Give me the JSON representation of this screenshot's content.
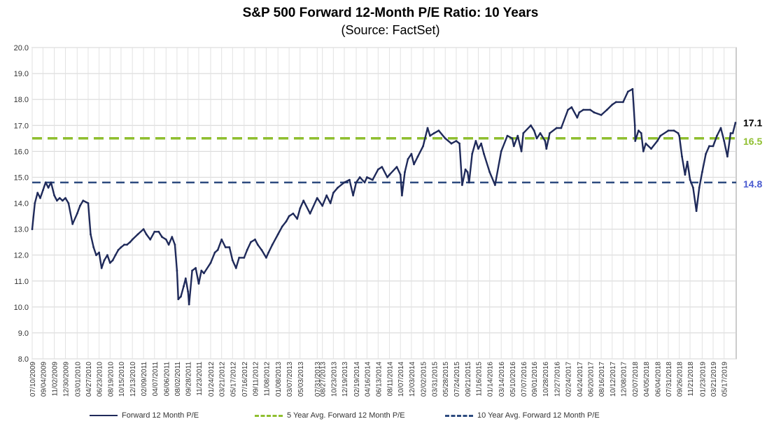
{
  "title": "S&P 500 Forward 12-Month P/E Ratio: 10 Years",
  "subtitle": "(Source: FactSet)",
  "colors": {
    "series": "#1f2a5a",
    "avg5": "#8fbf2f",
    "avg10": "#2e4b7f",
    "label5": "#8fbf2f",
    "label10": "#4a5bd0"
  },
  "chart_data": {
    "type": "line",
    "title": "S&P 500 Forward 12-Month P/E Ratio: 10 Years",
    "subtitle": "(Source: FactSet)",
    "xlabel": "",
    "ylabel": "",
    "ylim": [
      8.0,
      20.0
    ],
    "yticks": [
      "8.0",
      "9.0",
      "10.0",
      "11.0",
      "12.0",
      "13.0",
      "14.0",
      "15.0",
      "16.0",
      "17.0",
      "18.0",
      "19.0",
      "20.0"
    ],
    "grid": true,
    "legend_position": "bottom",
    "xticks": [
      "07/10/2009",
      "09/04/2009",
      "11/02/2009",
      "12/30/2009",
      "03/01/2010",
      "04/27/2010",
      "06/23/2010",
      "08/19/2010",
      "10/15/2010",
      "12/13/2010",
      "02/09/2011",
      "04/07/2011",
      "06/06/2011",
      "08/02/2011",
      "09/28/2011",
      "11/23/2011",
      "01/24/2012",
      "03/21/2012",
      "05/17/2012",
      "07/16/2012",
      "09/11/2012",
      "11/08/2012",
      "01/08/2013",
      "03/07/2013",
      "05/03/2013",
      "07/31/2013",
      "08/27/2013",
      "10/23/2013",
      "12/19/2013",
      "02/19/2014",
      "04/16/2014",
      "06/13/2014",
      "08/11/2014",
      "10/07/2014",
      "12/03/2014",
      "02/02/2015",
      "03/31/2015",
      "05/28/2015",
      "07/24/2015",
      "09/21/2015",
      "11/16/2015",
      "01/14/2016",
      "03/14/2016",
      "05/10/2016",
      "07/07/2016",
      "09/01/2016",
      "10/28/2016",
      "12/27/2016",
      "02/24/2017",
      "04/24/2017",
      "06/20/2017",
      "08/16/2017",
      "10/12/2017",
      "12/08/2017",
      "02/07/2018",
      "04/05/2018",
      "06/04/2018",
      "07/31/2018",
      "09/26/2018",
      "11/21/2018",
      "01/23/2019",
      "03/21/2019",
      "05/17/2019"
    ],
    "series": [
      {
        "name": "Forward 12 Month P/E",
        "style": "solid",
        "points": [
          [
            "07/10/2009",
            13.0
          ],
          [
            "07/24/2009",
            14.0
          ],
          [
            "08/07/2009",
            14.4
          ],
          [
            "08/21/2009",
            14.2
          ],
          [
            "09/04/2009",
            14.5
          ],
          [
            "09/18/2009",
            14.8
          ],
          [
            "10/02/2009",
            14.6
          ],
          [
            "10/16/2009",
            14.8
          ],
          [
            "11/02/2009",
            14.3
          ],
          [
            "11/16/2009",
            14.1
          ],
          [
            "11/30/2009",
            14.2
          ],
          [
            "12/15/2009",
            14.1
          ],
          [
            "12/30/2009",
            14.2
          ],
          [
            "01/15/2010",
            14.0
          ],
          [
            "02/05/2010",
            13.2
          ],
          [
            "03/01/2010",
            13.6
          ],
          [
            "03/16/2010",
            13.9
          ],
          [
            "04/01/2010",
            14.1
          ],
          [
            "04/27/2010",
            14.0
          ],
          [
            "05/10/2010",
            12.8
          ],
          [
            "05/25/2010",
            12.3
          ],
          [
            "06/08/2010",
            12.0
          ],
          [
            "06/23/2010",
            12.1
          ],
          [
            "07/06/2010",
            11.5
          ],
          [
            "07/20/2010",
            11.8
          ],
          [
            "08/05/2010",
            12.0
          ],
          [
            "08/19/2010",
            11.7
          ],
          [
            "09/02/2010",
            11.8
          ],
          [
            "09/16/2010",
            12.0
          ],
          [
            "10/01/2010",
            12.2
          ],
          [
            "10/15/2010",
            12.3
          ],
          [
            "11/01/2010",
            12.4
          ],
          [
            "11/15/2010",
            12.4
          ],
          [
            "12/01/2010",
            12.5
          ],
          [
            "12/13/2010",
            12.6
          ],
          [
            "01/10/2011",
            12.8
          ],
          [
            "02/09/2011",
            13.0
          ],
          [
            "02/24/2011",
            12.8
          ],
          [
            "03/16/2011",
            12.6
          ],
          [
            "04/07/2011",
            12.9
          ],
          [
            "04/29/2011",
            12.9
          ],
          [
            "05/16/2011",
            12.7
          ],
          [
            "06/06/2011",
            12.6
          ],
          [
            "06/20/2011",
            12.4
          ],
          [
            "07/07/2011",
            12.7
          ],
          [
            "07/22/2011",
            12.4
          ],
          [
            "08/02/2011",
            11.4
          ],
          [
            "08/09/2011",
            10.3
          ],
          [
            "08/22/2011",
            10.4
          ],
          [
            "09/06/2011",
            10.8
          ],
          [
            "09/16/2011",
            11.1
          ],
          [
            "09/28/2011",
            10.6
          ],
          [
            "10/04/2011",
            10.1
          ],
          [
            "10/20/2011",
            11.4
          ],
          [
            "11/07/2011",
            11.5
          ],
          [
            "11/23/2011",
            10.9
          ],
          [
            "12/07/2011",
            11.4
          ],
          [
            "12/20/2011",
            11.3
          ],
          [
            "01/24/2012",
            11.7
          ],
          [
            "02/15/2012",
            12.1
          ],
          [
            "03/01/2012",
            12.2
          ],
          [
            "03/21/2012",
            12.6
          ],
          [
            "04/10/2012",
            12.3
          ],
          [
            "05/01/2012",
            12.3
          ],
          [
            "05/17/2012",
            11.8
          ],
          [
            "06/04/2012",
            11.5
          ],
          [
            "06/20/2012",
            11.9
          ],
          [
            "07/16/2012",
            11.9
          ],
          [
            "08/01/2012",
            12.2
          ],
          [
            "08/20/2012",
            12.5
          ],
          [
            "09/11/2012",
            12.6
          ],
          [
            "09/25/2012",
            12.4
          ],
          [
            "10/15/2012",
            12.2
          ],
          [
            "11/08/2012",
            11.9
          ],
          [
            "11/20/2012",
            12.1
          ],
          [
            "12/10/2012",
            12.4
          ],
          [
            "01/08/2013",
            12.8
          ],
          [
            "01/30/2013",
            13.1
          ],
          [
            "02/20/2013",
            13.3
          ],
          [
            "03/07/2013",
            13.5
          ],
          [
            "03/28/2013",
            13.6
          ],
          [
            "04/18/2013",
            13.4
          ],
          [
            "05/03/2013",
            13.8
          ],
          [
            "05/21/2013",
            14.1
          ],
          [
            "06/24/2013",
            13.6
          ],
          [
            "07/31/2013",
            14.2
          ],
          [
            "08/27/2013",
            13.9
          ],
          [
            "09/18/2013",
            14.3
          ],
          [
            "10/08/2013",
            14.0
          ],
          [
            "10/23/2013",
            14.4
          ],
          [
            "11/15/2013",
            14.6
          ],
          [
            "12/19/2013",
            14.8
          ],
          [
            "01/15/2014",
            14.9
          ],
          [
            "02/03/2014",
            14.3
          ],
          [
            "02/19/2014",
            14.8
          ],
          [
            "03/10/2014",
            15.0
          ],
          [
            "04/04/2014",
            14.8
          ],
          [
            "04/16/2014",
            15.0
          ],
          [
            "05/15/2014",
            14.9
          ],
          [
            "06/13/2014",
            15.3
          ],
          [
            "07/03/2014",
            15.4
          ],
          [
            "07/31/2014",
            15.0
          ],
          [
            "08/11/2014",
            15.1
          ],
          [
            "09/18/2014",
            15.4
          ],
          [
            "10/07/2014",
            15.1
          ],
          [
            "10/15/2014",
            14.3
          ],
          [
            "10/30/2014",
            15.2
          ],
          [
            "11/15/2014",
            15.7
          ],
          [
            "12/03/2014",
            15.9
          ],
          [
            "12/16/2014",
            15.5
          ],
          [
            "01/05/2015",
            15.8
          ],
          [
            "02/02/2015",
            16.2
          ],
          [
            "02/25/2015",
            16.9
          ],
          [
            "03/10/2015",
            16.6
          ],
          [
            "03/31/2015",
            16.7
          ],
          [
            "04/24/2015",
            16.8
          ],
          [
            "05/28/2015",
            16.5
          ],
          [
            "06/29/2015",
            16.3
          ],
          [
            "07/24/2015",
            16.4
          ],
          [
            "08/10/2015",
            16.3
          ],
          [
            "08/24/2015",
            14.7
          ],
          [
            "09/10/2015",
            15.3
          ],
          [
            "09/21/2015",
            15.2
          ],
          [
            "09/29/2015",
            14.8
          ],
          [
            "10/15/2015",
            15.9
          ],
          [
            "11/03/2015",
            16.4
          ],
          [
            "11/16/2015",
            16.1
          ],
          [
            "12/01/2015",
            16.3
          ],
          [
            "12/15/2015",
            15.9
          ],
          [
            "01/14/2016",
            15.2
          ],
          [
            "02/11/2016",
            14.7
          ],
          [
            "03/14/2016",
            16.0
          ],
          [
            "04/15/2016",
            16.6
          ],
          [
            "05/10/2016",
            16.5
          ],
          [
            "05/19/2016",
            16.2
          ],
          [
            "06/08/2016",
            16.6
          ],
          [
            "06/27/2016",
            16.0
          ],
          [
            "07/07/2016",
            16.7
          ],
          [
            "08/15/2016",
            17.0
          ],
          [
            "09/01/2016",
            16.8
          ],
          [
            "09/15/2016",
            16.5
          ],
          [
            "10/03/2016",
            16.7
          ],
          [
            "10/28/2016",
            16.4
          ],
          [
            "11/04/2016",
            16.1
          ],
          [
            "11/21/2016",
            16.7
          ],
          [
            "12/27/2016",
            16.9
          ],
          [
            "01/20/2017",
            16.9
          ],
          [
            "02/24/2017",
            17.6
          ],
          [
            "03/15/2017",
            17.7
          ],
          [
            "04/13/2017",
            17.3
          ],
          [
            "04/24/2017",
            17.5
          ],
          [
            "05/15/2017",
            17.6
          ],
          [
            "06/20/2017",
            17.6
          ],
          [
            "07/10/2017",
            17.5
          ],
          [
            "08/16/2017",
            17.4
          ],
          [
            "09/15/2017",
            17.6
          ],
          [
            "10/12/2017",
            17.8
          ],
          [
            "11/01/2017",
            17.9
          ],
          [
            "12/08/2017",
            17.9
          ],
          [
            "01/02/2018",
            18.3
          ],
          [
            "01/26/2018",
            18.4
          ],
          [
            "02/07/2018",
            17.0
          ],
          [
            "02/09/2018",
            16.4
          ],
          [
            "02/26/2018",
            16.8
          ],
          [
            "03/12/2018",
            16.7
          ],
          [
            "03/23/2018",
            16.0
          ],
          [
            "04/05/2018",
            16.3
          ],
          [
            "05/03/2018",
            16.1
          ],
          [
            "06/04/2018",
            16.4
          ],
          [
            "06/20/2018",
            16.6
          ],
          [
            "07/31/2018",
            16.8
          ],
          [
            "08/29/2018",
            16.8
          ],
          [
            "09/20/2018",
            16.7
          ],
          [
            "09/26/2018",
            16.6
          ],
          [
            "10/10/2018",
            15.8
          ],
          [
            "10/26/2018",
            15.1
          ],
          [
            "11/07/2018",
            15.6
          ],
          [
            "11/21/2018",
            14.9
          ],
          [
            "12/07/2018",
            14.6
          ],
          [
            "12/24/2018",
            13.7
          ],
          [
            "01/08/2019",
            14.6
          ],
          [
            "01/23/2019",
            15.2
          ],
          [
            "02/11/2019",
            15.9
          ],
          [
            "03/01/2019",
            16.2
          ],
          [
            "03/21/2019",
            16.2
          ],
          [
            "04/10/2019",
            16.6
          ],
          [
            "04/30/2019",
            16.9
          ],
          [
            "05/17/2019",
            16.4
          ],
          [
            "06/03/2019",
            15.8
          ],
          [
            "06/20/2019",
            16.7
          ],
          [
            "07/01/2019",
            16.7
          ],
          [
            "07/15/2019",
            17.1
          ]
        ]
      },
      {
        "name": "5 Year Avg. Forward 12 Month P/E",
        "style": "dashed",
        "value": 16.5
      },
      {
        "name": "10 Year Avg. Forward 12 Month P/E",
        "style": "dashed",
        "value": 14.8
      }
    ],
    "annotations": [
      {
        "text": "17.1",
        "value": 17.1
      },
      {
        "text": "16.5",
        "value": 16.5
      },
      {
        "text": "14.8",
        "value": 14.8
      }
    ]
  }
}
